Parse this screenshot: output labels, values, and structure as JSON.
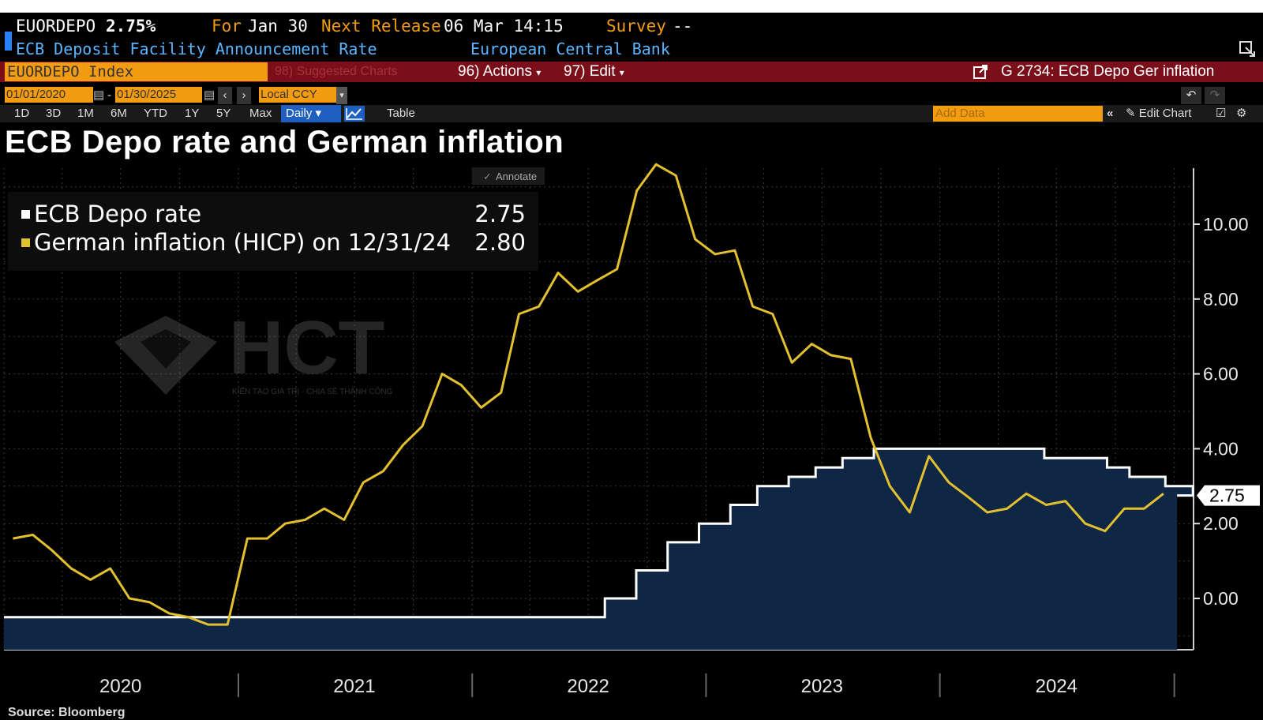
{
  "header": {
    "ticker": "EUORDEPO",
    "value": "2.75%",
    "for_label": "For",
    "for_date": "Jan 30",
    "next_release_label": "Next Release",
    "next_release": "06 Mar 14:15",
    "survey_label": "Survey",
    "survey_value": "--",
    "description": "ECB Deposit Facility Announcement Rate",
    "source": "European Central Bank"
  },
  "toolbar": {
    "security": "EUORDEPO Index",
    "suggested": "98) Suggested Charts",
    "actions": "96) Actions",
    "edit": "97) Edit",
    "chart_title": "G 2734: ECB Depo Ger inflation"
  },
  "range": {
    "start": "01/01/2020",
    "sep": "-",
    "end": "01/30/2025",
    "currency": "Local CCY"
  },
  "periods": [
    "1D",
    "3D",
    "1M",
    "6M",
    "YTD",
    "1Y",
    "5Y",
    "Max"
  ],
  "frequency": "Daily",
  "table_label": "Table",
  "add_data_placeholder": "Add Data",
  "edit_chart": "Edit Chart",
  "annotate": "Annotate",
  "colors": {
    "gold": "#e3c02e",
    "white_line": "#ffffff",
    "area": "#0f2745",
    "bbg_red": "#7a0f1a",
    "orange": "#f39c12"
  },
  "watermark": {
    "brand": "HCT",
    "tagline": "KIẾN TẠO GIÁ TRỊ - CHIA SẺ THÀNH CÔNG"
  },
  "source_text": "Source: Bloomberg",
  "chart_data": {
    "type": "line",
    "title": "ECB Depo rate and German inflation",
    "xlabel": "",
    "ylabel": "",
    "x_ticks": [
      "2020",
      "2021",
      "2022",
      "2023",
      "2024"
    ],
    "y_ticks": [
      "0.00",
      "2.00",
      "4.00",
      "6.00",
      "8.00",
      "10.00"
    ],
    "ylim": [
      -1.5,
      11.8
    ],
    "last_value_label": "2.75",
    "legend": [
      {
        "series": "ECB Depo rate",
        "value": "2.75",
        "color": "#ffffff"
      },
      {
        "series": "German inflation (HICP) on 12/31/24",
        "value": "2.80",
        "color": "#e3c02e"
      }
    ],
    "series": [
      {
        "name": "ECB Depo rate",
        "step": true,
        "x": [
          "2020-01-01",
          "2022-07-27",
          "2022-09-14",
          "2022-11-02",
          "2022-12-21",
          "2023-02-08",
          "2023-03-22",
          "2023-05-10",
          "2023-06-21",
          "2023-08-02",
          "2023-09-20",
          "2024-06-12",
          "2024-09-18",
          "2024-10-23",
          "2024-12-18",
          "2025-01-30"
        ],
        "values": [
          -0.5,
          0.0,
          0.75,
          1.5,
          2.0,
          2.5,
          3.0,
          3.25,
          3.5,
          3.75,
          4.0,
          3.75,
          3.5,
          3.25,
          3.0,
          2.75
        ]
      },
      {
        "name": "German inflation (HICP) on 12/31/24",
        "x": [
          "2020-01",
          "2020-02",
          "2020-03",
          "2020-04",
          "2020-05",
          "2020-06",
          "2020-07",
          "2020-08",
          "2020-09",
          "2020-10",
          "2020-11",
          "2020-12",
          "2021-01",
          "2021-02",
          "2021-03",
          "2021-04",
          "2021-05",
          "2021-06",
          "2021-07",
          "2021-08",
          "2021-09",
          "2021-10",
          "2021-11",
          "2021-12",
          "2022-01",
          "2022-02",
          "2022-03",
          "2022-04",
          "2022-05",
          "2022-06",
          "2022-07",
          "2022-08",
          "2022-09",
          "2022-10",
          "2022-11",
          "2022-12",
          "2023-01",
          "2023-02",
          "2023-03",
          "2023-04",
          "2023-05",
          "2023-06",
          "2023-07",
          "2023-08",
          "2023-09",
          "2023-10",
          "2023-11",
          "2023-12",
          "2024-01",
          "2024-02",
          "2024-03",
          "2024-04",
          "2024-05",
          "2024-06",
          "2024-07",
          "2024-08",
          "2024-09",
          "2024-10",
          "2024-11",
          "2024-12"
        ],
        "values": [
          1.6,
          1.7,
          1.3,
          0.8,
          0.5,
          0.8,
          0.0,
          -0.1,
          -0.4,
          -0.5,
          -0.7,
          -0.7,
          1.6,
          1.6,
          2.0,
          2.1,
          2.4,
          2.1,
          3.1,
          3.4,
          4.1,
          4.6,
          6.0,
          5.7,
          5.1,
          5.5,
          7.6,
          7.8,
          8.7,
          8.2,
          8.5,
          8.8,
          10.9,
          11.6,
          11.3,
          9.6,
          9.2,
          9.3,
          7.8,
          7.6,
          6.3,
          6.8,
          6.5,
          6.4,
          4.3,
          3.0,
          2.3,
          3.8,
          3.1,
          2.7,
          2.3,
          2.4,
          2.8,
          2.5,
          2.6,
          2.0,
          1.8,
          2.4,
          2.4,
          2.8
        ]
      }
    ]
  }
}
